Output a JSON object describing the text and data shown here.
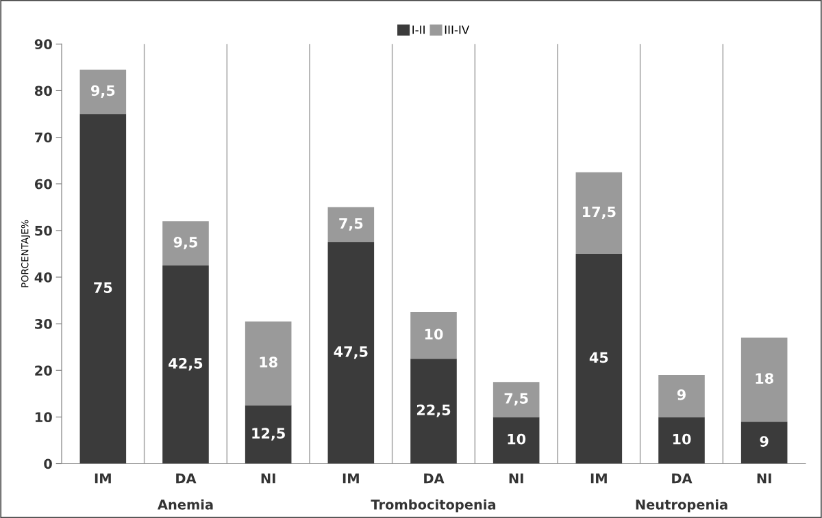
{
  "chart_data": {
    "type": "bar",
    "stacked": true,
    "ylabel": "PORCENTAJE%",
    "categories": [
      "IM",
      "DA",
      "NI",
      "IM",
      "DA",
      "NI",
      "IM",
      "DA",
      "NI"
    ],
    "series": [
      {
        "name": "I-II",
        "color": "#3b3b3b",
        "values": [
          75,
          42.5,
          12.5,
          47.5,
          22.5,
          10,
          45,
          10,
          9
        ],
        "value_labels": [
          "75",
          "42,5",
          "12,5",
          "47,5",
          "22,5",
          "10",
          "45",
          "10",
          "9"
        ]
      },
      {
        "name": "III-IV",
        "color": "#9a9a9a",
        "values": [
          9.5,
          9.5,
          18,
          7.5,
          10,
          7.5,
          17.5,
          9,
          18
        ],
        "value_labels": [
          "9,5",
          "9,5",
          "18",
          "7,5",
          "10",
          "7,5",
          "17,5",
          "9",
          "18"
        ]
      }
    ],
    "annotations": [
      "Anemia",
      "Trombocitopenia",
      "Neutropenia"
    ],
    "ylim": [
      0,
      90
    ],
    "yticks": [
      0,
      10,
      20,
      30,
      40,
      50,
      60,
      70,
      80,
      90
    ],
    "grid": "x",
    "legend": "top"
  }
}
